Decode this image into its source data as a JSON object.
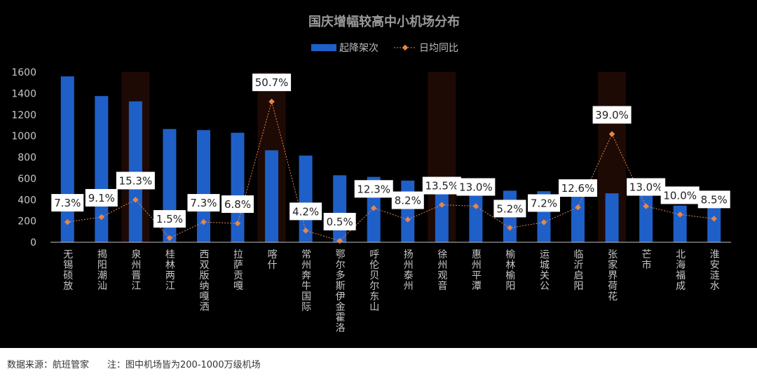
{
  "footer": {
    "source": "数据来源：航班管家",
    "note": "注：图中机场皆为200-1000万级机场"
  },
  "chart_data": {
    "type": "bar",
    "title": "国庆增幅较高中小机场分布",
    "legend_position": "top-center",
    "grid": false,
    "ylim": [
      0,
      1600
    ],
    "yticks": [
      "0",
      "200",
      "400",
      "600",
      "800",
      "1000",
      "1200",
      "1400",
      "1600"
    ],
    "categories": [
      "无锡硕放",
      "揭阳潮汕",
      "泉州晋江",
      "桂林两江",
      "西双版纳嘎洒",
      "拉萨贡嘎",
      "喀什",
      "常州奔牛国际",
      "鄂尔多斯伊金霍洛",
      "呼伦贝尔东山",
      "扬州泰州",
      "徐州观音",
      "惠州平潭",
      "榆林榆阳",
      "运城关公",
      "临沂启阳",
      "张家界荷花",
      "芒市",
      "北海福成",
      "淮安涟水"
    ],
    "series": [
      {
        "name": "起降架次",
        "type": "bar",
        "color": "#1f5fc8",
        "values": [
          1560,
          1375,
          1325,
          1065,
          1055,
          1030,
          865,
          815,
          630,
          615,
          580,
          455,
          440,
          485,
          480,
          470,
          460,
          440,
          345,
          330
        ]
      },
      {
        "name": "日均同比",
        "type": "line",
        "color": "#e8864a",
        "values": [
          7.3,
          9.1,
          15.3,
          1.5,
          7.3,
          6.8,
          50.7,
          4.2,
          0.5,
          12.3,
          8.2,
          13.5,
          13.0,
          5.2,
          7.2,
          12.6,
          39.0,
          13.0,
          10.0,
          8.5
        ],
        "labels": [
          "7.3%",
          "9.1%",
          "15.3%",
          "1.5%",
          "7.3%",
          "6.8%",
          "50.7%",
          "4.2%",
          "0.5%",
          "12.3%",
          "8.2%",
          "13.5%",
          "13.0%",
          "5.2%",
          "7.2%",
          "12.6%",
          "39.0%",
          "13.0%",
          "10.0%",
          "8.5%"
        ]
      }
    ],
    "highlighted_categories": [
      "泉州晋江",
      "喀什",
      "徐州观音",
      "张家界荷花"
    ],
    "highlight_color": "#1e0a04"
  }
}
